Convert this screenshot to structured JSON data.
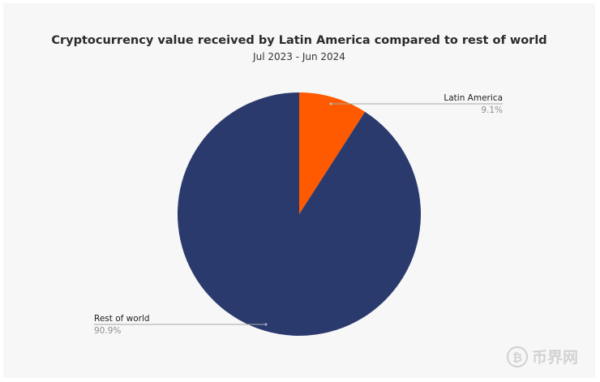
{
  "chart_data": {
    "type": "pie",
    "title": "Cryptocurrency value received by Latin America compared to rest of world",
    "subtitle": "Jul 2023 - Jun 2024",
    "start_angle_deg": 0,
    "direction": "clockwise",
    "slices": [
      {
        "label": "Latin America",
        "value": 9.1,
        "value_label": "9.1%",
        "color": "#ff5a00"
      },
      {
        "label": "Rest of world",
        "value": 90.9,
        "value_label": "90.9%",
        "color": "#2b3a6d"
      }
    ],
    "legend": "none (callout labels)"
  },
  "watermark": {
    "text": "币界网",
    "icon": "bitcoin-coin-icon"
  }
}
